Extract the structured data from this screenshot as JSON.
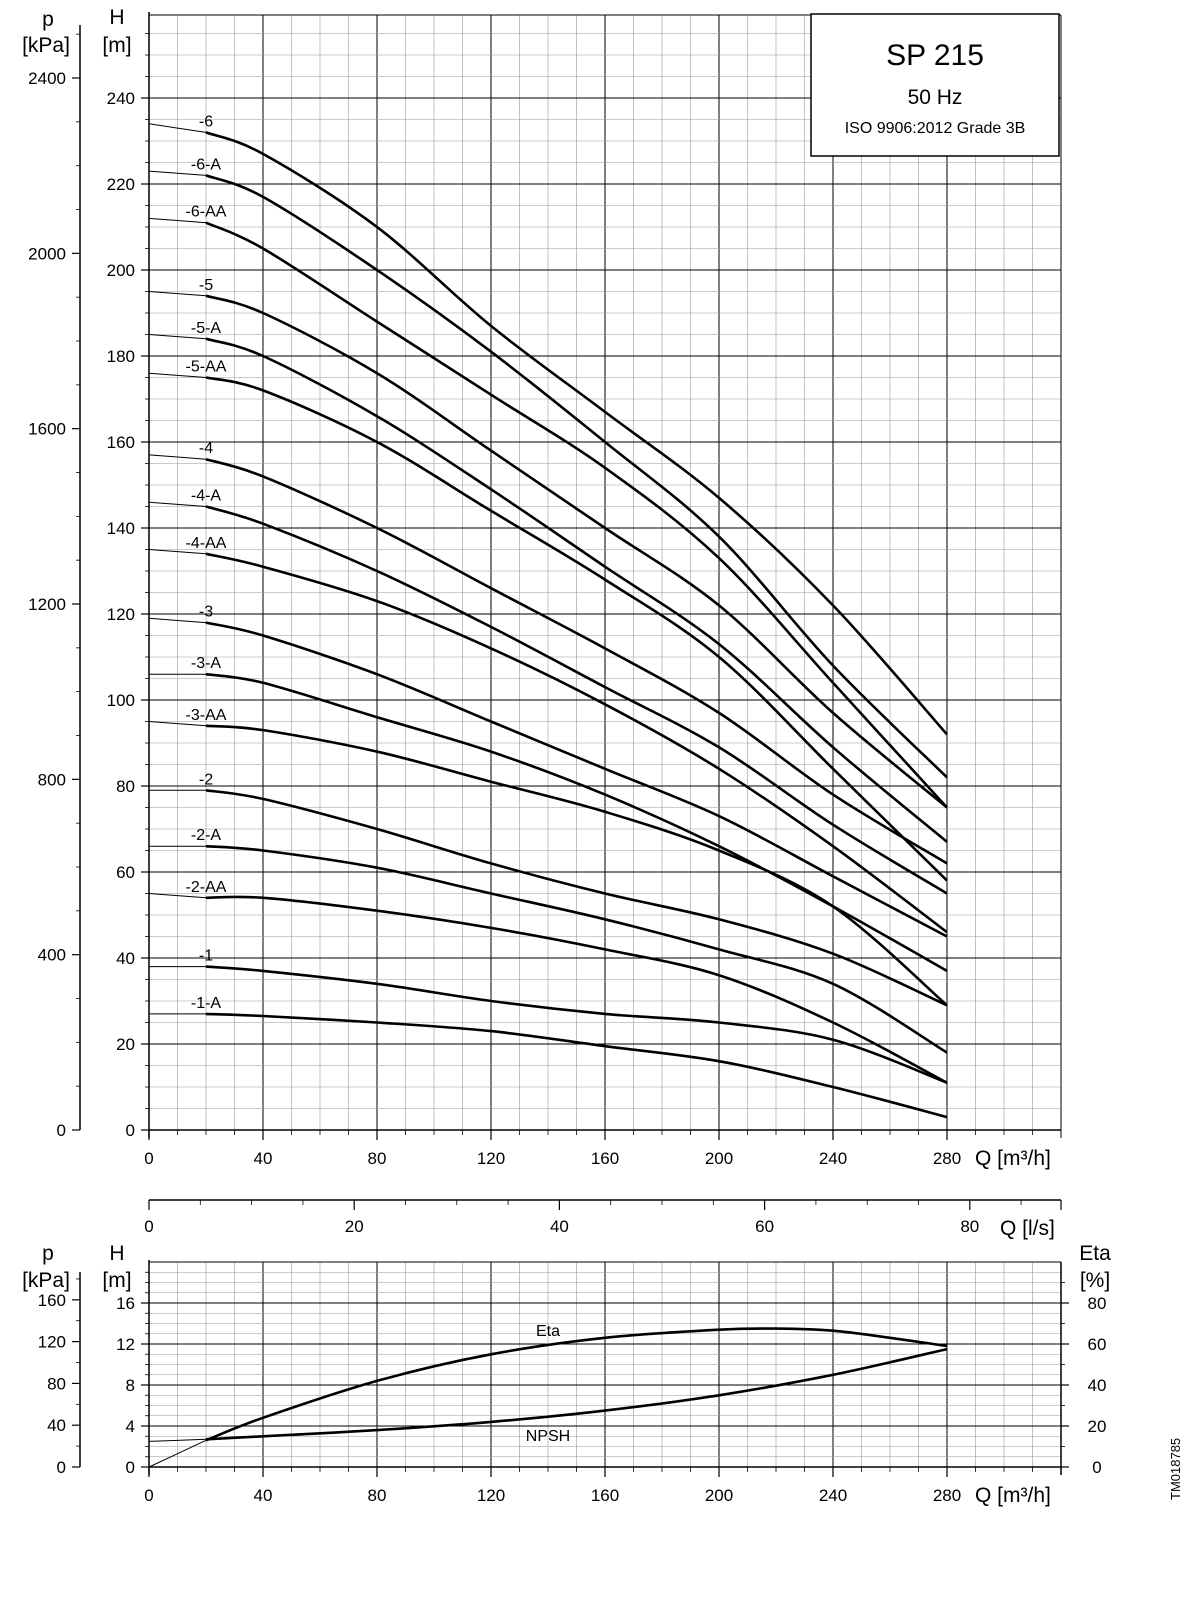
{
  "title": {
    "model": "SP 215",
    "frequency": "50 Hz",
    "standard": "ISO 9906:2012 Grade 3B"
  },
  "side_code": "TM018785",
  "chart_data": [
    {
      "type": "line",
      "name": "head-curves",
      "xlabel": "Q [m³/h]",
      "ylabel": "H\n[m]",
      "ylabel_left": "p\n[kPa]",
      "xlim": [
        0,
        320
      ],
      "ylim": [
        0,
        260
      ],
      "x_ticks": [
        0,
        40,
        80,
        120,
        160,
        200,
        240,
        280
      ],
      "y_ticks": [
        0,
        20,
        40,
        60,
        80,
        100,
        120,
        140,
        160,
        180,
        200,
        220,
        240
      ],
      "p_ticks": [
        0,
        400,
        800,
        1200,
        1600,
        2000,
        2400
      ],
      "x_ls_ticks": [
        0,
        20,
        40,
        60,
        80
      ],
      "x_ls_label": "Q [l/s]",
      "grid": true,
      "series": [
        {
          "name": "-6",
          "x": [
            0,
            20,
            40,
            80,
            120,
            160,
            200,
            240,
            280
          ],
          "y": [
            234,
            232,
            227,
            210,
            187,
            167,
            147,
            122,
            92
          ]
        },
        {
          "name": "-6-A",
          "x": [
            0,
            20,
            40,
            80,
            120,
            160,
            200,
            240,
            280
          ],
          "y": [
            223,
            222,
            217,
            200,
            181,
            160,
            138,
            108,
            82
          ]
        },
        {
          "name": "-6-AA",
          "x": [
            0,
            20,
            40,
            80,
            120,
            160,
            200,
            240,
            280
          ],
          "y": [
            212,
            211,
            205,
            188,
            171,
            154,
            133,
            104,
            75
          ]
        },
        {
          "name": "-5",
          "x": [
            0,
            20,
            40,
            80,
            120,
            160,
            200,
            240,
            280
          ],
          "y": [
            195,
            194,
            190,
            176,
            158,
            140,
            122,
            97,
            75
          ]
        },
        {
          "name": "-5-A",
          "x": [
            0,
            20,
            40,
            80,
            120,
            160,
            200,
            240,
            280
          ],
          "y": [
            185,
            184,
            180,
            166,
            149,
            131,
            113,
            89,
            67
          ]
        },
        {
          "name": "-5-AA",
          "x": [
            0,
            20,
            40,
            80,
            120,
            160,
            200,
            240,
            280
          ],
          "y": [
            176,
            175,
            172,
            160,
            144,
            128,
            110,
            84,
            58
          ]
        },
        {
          "name": "-4",
          "x": [
            0,
            20,
            40,
            80,
            120,
            160,
            200,
            240,
            280
          ],
          "y": [
            157,
            156,
            152,
            140,
            126,
            112,
            97,
            78,
            62
          ]
        },
        {
          "name": "-4-A",
          "x": [
            0,
            20,
            40,
            80,
            120,
            160,
            200,
            240,
            280
          ],
          "y": [
            146,
            145,
            141,
            130,
            117,
            103,
            89,
            71,
            55
          ]
        },
        {
          "name": "-4-AA",
          "x": [
            0,
            20,
            40,
            80,
            120,
            160,
            200,
            240,
            280
          ],
          "y": [
            135,
            134,
            131,
            123,
            112,
            99,
            84,
            66,
            46
          ]
        },
        {
          "name": "-3",
          "x": [
            0,
            20,
            40,
            80,
            120,
            160,
            200,
            240,
            280
          ],
          "y": [
            119,
            118,
            115,
            106,
            95,
            84,
            73,
            59,
            45
          ]
        },
        {
          "name": "-3-A",
          "x": [
            0,
            20,
            40,
            80,
            120,
            160,
            200,
            240,
            280
          ],
          "y": [
            106,
            106,
            104,
            96,
            88,
            78,
            66,
            52,
            37
          ]
        },
        {
          "name": "-3-AA",
          "x": [
            0,
            20,
            40,
            80,
            120,
            160,
            200,
            240,
            280
          ],
          "y": [
            95,
            94,
            93,
            88,
            81,
            74,
            65,
            52,
            29
          ]
        },
        {
          "name": "-2",
          "x": [
            0,
            20,
            40,
            80,
            120,
            160,
            200,
            240,
            280
          ],
          "y": [
            79,
            79,
            77,
            70,
            62,
            55,
            49,
            41,
            29
          ]
        },
        {
          "name": "-2-A",
          "x": [
            0,
            20,
            40,
            80,
            120,
            160,
            200,
            240,
            280
          ],
          "y": [
            66,
            66,
            65,
            61,
            55,
            49,
            42,
            34,
            18
          ]
        },
        {
          "name": "-2-AA",
          "x": [
            0,
            20,
            40,
            80,
            120,
            160,
            200,
            240,
            280
          ],
          "y": [
            55,
            54,
            54,
            51,
            47,
            42,
            36,
            25,
            11
          ]
        },
        {
          "name": "-1",
          "x": [
            0,
            20,
            40,
            80,
            120,
            160,
            200,
            240,
            280
          ],
          "y": [
            38,
            38,
            37,
            34,
            30,
            27,
            25,
            21,
            11
          ]
        },
        {
          "name": "-1-A",
          "x": [
            0,
            20,
            40,
            80,
            120,
            160,
            200,
            240,
            280
          ],
          "y": [
            27,
            27,
            26.5,
            25,
            23,
            19.5,
            16,
            10,
            3
          ]
        }
      ]
    },
    {
      "type": "line",
      "name": "npsh-eta",
      "xlabel": "Q [m³/h]",
      "ylabel": "H\n[m]",
      "ylabel_left": "p\n[kPa]",
      "ylabel_right": "Eta\n[%]",
      "xlim": [
        0,
        320
      ],
      "ylim": [
        0,
        20
      ],
      "x_ticks": [
        0,
        40,
        80,
        120,
        160,
        200,
        240,
        280
      ],
      "y_ticks": [
        0,
        4,
        8,
        12,
        16
      ],
      "p_ticks": [
        0,
        40,
        80,
        120,
        160
      ],
      "eta_ticks": [
        0,
        20,
        40,
        60,
        80
      ],
      "grid": true,
      "series": [
        {
          "name": "Eta",
          "x": [
            0,
            20,
            40,
            80,
            120,
            160,
            200,
            220,
            240,
            260,
            280
          ],
          "y": [
            0,
            13,
            24,
            42,
            55,
            63,
            67,
            67.5,
            66.5,
            63,
            59
          ],
          "axis": "eta"
        },
        {
          "name": "NPSH",
          "x": [
            0,
            20,
            40,
            80,
            120,
            160,
            200,
            240,
            280
          ],
          "y": [
            2.5,
            2.7,
            3.0,
            3.6,
            4.4,
            5.5,
            7.0,
            9.0,
            11.5
          ],
          "axis": "h"
        }
      ]
    }
  ]
}
